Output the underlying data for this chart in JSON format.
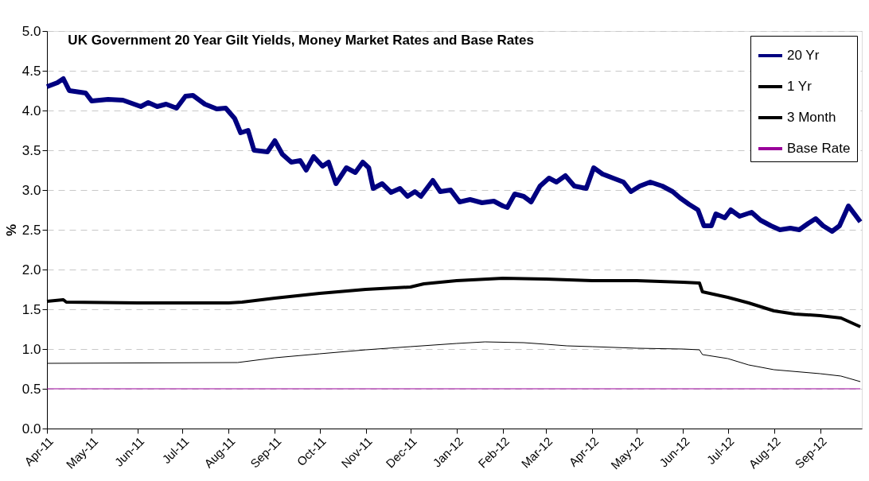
{
  "chart_data": {
    "type": "line",
    "title": "UK Government 20 Year Gilt Yields, Money Market Rates and Base Rates",
    "ylabel": "%",
    "xlim": [
      "2011-04-01",
      "2012-09-29"
    ],
    "ylim": [
      0,
      5
    ],
    "yticks": [
      {
        "value": 0,
        "label": "0.0"
      },
      {
        "value": 0.5,
        "label": "0.5"
      },
      {
        "value": 1,
        "label": "1.0"
      },
      {
        "value": 1.5,
        "label": "1.5"
      },
      {
        "value": 2,
        "label": "2.0"
      },
      {
        "value": 2.5,
        "label": "2.5"
      },
      {
        "value": 3,
        "label": "3.0"
      },
      {
        "value": 3.5,
        "label": "3.5"
      },
      {
        "value": 4,
        "label": "4.0"
      },
      {
        "value": 4.5,
        "label": "4.5"
      },
      {
        "value": 5,
        "label": "5.0"
      }
    ],
    "xticks": [
      {
        "value": "2011-04",
        "label": "Apr-11"
      },
      {
        "value": "2011-05",
        "label": "May-11"
      },
      {
        "value": "2011-06",
        "label": "Jun-11"
      },
      {
        "value": "2011-07",
        "label": "Jul-11"
      },
      {
        "value": "2011-08",
        "label": "Aug-11"
      },
      {
        "value": "2011-09",
        "label": "Sep-11"
      },
      {
        "value": "2011-10",
        "label": "Oct-11"
      },
      {
        "value": "2011-11",
        "label": "Nov-11"
      },
      {
        "value": "2011-12",
        "label": "Dec-11"
      },
      {
        "value": "2012-01",
        "label": "Jan-12"
      },
      {
        "value": "2012-02",
        "label": "Feb-12"
      },
      {
        "value": "2012-03",
        "label": "Mar-12"
      },
      {
        "value": "2012-04",
        "label": "Apr-12"
      },
      {
        "value": "2012-05",
        "label": "May-12"
      },
      {
        "value": "2012-06",
        "label": "Jun-12"
      },
      {
        "value": "2012-07",
        "label": "Jul-12"
      },
      {
        "value": "2012-08",
        "label": "Aug-12"
      },
      {
        "value": "2012-09",
        "label": "Sep-12"
      }
    ],
    "grid": "y",
    "legend": "top right",
    "marker": "none",
    "series": [
      {
        "name": "20 Yr",
        "color": "#000080",
        "x": [
          "2011-04-01",
          "2011-04-08",
          "2011-04-12",
          "2011-04-16",
          "2011-04-27",
          "2011-05-01",
          "2011-05-12",
          "2011-05-22",
          "2011-06-03",
          "2011-06-08",
          "2011-06-14",
          "2011-06-20",
          "2011-06-27",
          "2011-07-03",
          "2011-07-08",
          "2011-07-16",
          "2011-07-24",
          "2011-07-30",
          "2011-08-05",
          "2011-08-09",
          "2011-08-14",
          "2011-08-18",
          "2011-08-27",
          "2011-09-01",
          "2011-09-06",
          "2011-09-12",
          "2011-09-18",
          "2011-09-22",
          "2011-09-27",
          "2011-10-03",
          "2011-10-07",
          "2011-10-12",
          "2011-10-19",
          "2011-10-25",
          "2011-10-30",
          "2011-11-03",
          "2011-11-06",
          "2011-11-12",
          "2011-11-18",
          "2011-11-24",
          "2011-11-29",
          "2011-12-04",
          "2011-12-08",
          "2011-12-16",
          "2011-12-21",
          "2011-12-28",
          "2012-01-03",
          "2012-01-10",
          "2012-01-18",
          "2012-01-26",
          "2012-02-01",
          "2012-02-04",
          "2012-02-09",
          "2012-02-15",
          "2012-02-20",
          "2012-02-26",
          "2012-03-03",
          "2012-03-08",
          "2012-03-14",
          "2012-03-20",
          "2012-03-28",
          "2012-04-02",
          "2012-04-08",
          "2012-04-15",
          "2012-04-22",
          "2012-04-27",
          "2012-05-03",
          "2012-05-10",
          "2012-05-18",
          "2012-05-25",
          "2012-05-30",
          "2012-06-05",
          "2012-06-11",
          "2012-06-15",
          "2012-06-20",
          "2012-06-23",
          "2012-06-29",
          "2012-07-03",
          "2012-07-09",
          "2012-07-17",
          "2012-07-23",
          "2012-07-30",
          "2012-08-05",
          "2012-08-12",
          "2012-08-18",
          "2012-08-24",
          "2012-08-29",
          "2012-09-03",
          "2012-09-09",
          "2012-09-14",
          "2012-09-20",
          "2012-09-24",
          "2012-09-28"
        ],
        "values": [
          4.3,
          4.35,
          4.4,
          4.25,
          4.22,
          4.12,
          4.14,
          4.13,
          4.05,
          4.1,
          4.05,
          4.08,
          4.03,
          4.18,
          4.19,
          4.08,
          4.02,
          4.03,
          3.9,
          3.72,
          3.75,
          3.5,
          3.48,
          3.62,
          3.45,
          3.35,
          3.37,
          3.25,
          3.42,
          3.3,
          3.35,
          3.08,
          3.28,
          3.22,
          3.35,
          3.28,
          3.02,
          3.08,
          2.97,
          3.02,
          2.92,
          2.98,
          2.92,
          3.12,
          2.98,
          3.0,
          2.85,
          2.88,
          2.84,
          2.86,
          2.8,
          2.78,
          2.95,
          2.92,
          2.85,
          3.05,
          3.15,
          3.1,
          3.18,
          3.05,
          3.02,
          3.28,
          3.2,
          3.15,
          3.1,
          2.98,
          3.05,
          3.1,
          3.05,
          2.98,
          2.9,
          2.82,
          2.75,
          2.55,
          2.55,
          2.7,
          2.65,
          2.75,
          2.67,
          2.72,
          2.62,
          2.55,
          2.5,
          2.52,
          2.5,
          2.58,
          2.64,
          2.55,
          2.48,
          2.55,
          2.8,
          2.7,
          2.6
        ]
      },
      {
        "name": "1 Yr",
        "color": "#000000",
        "x": [
          "2011-04-01",
          "2011-04-12",
          "2011-04-14",
          "2011-06-01",
          "2011-08-01",
          "2011-08-10",
          "2011-09-01",
          "2011-10-01",
          "2011-11-01",
          "2011-12-01",
          "2011-12-10",
          "2012-01-01",
          "2012-02-01",
          "2012-03-01",
          "2012-04-01",
          "2012-05-01",
          "2012-06-01",
          "2012-06-12",
          "2012-06-14",
          "2012-07-01",
          "2012-07-15",
          "2012-08-01",
          "2012-08-15",
          "2012-09-01",
          "2012-09-15",
          "2012-09-28"
        ],
        "values": [
          1.6,
          1.62,
          1.59,
          1.58,
          1.58,
          1.59,
          1.64,
          1.7,
          1.75,
          1.78,
          1.82,
          1.86,
          1.89,
          1.88,
          1.86,
          1.86,
          1.84,
          1.83,
          1.72,
          1.65,
          1.58,
          1.48,
          1.44,
          1.42,
          1.39,
          1.28
        ]
      },
      {
        "name": "3 Month",
        "color": "#000000",
        "x": [
          "2011-04-01",
          "2011-08-07",
          "2011-09-01",
          "2011-10-01",
          "2011-11-01",
          "2011-12-01",
          "2012-01-01",
          "2012-01-20",
          "2012-02-15",
          "2012-03-01",
          "2012-03-15",
          "2012-04-01",
          "2012-05-01",
          "2012-06-01",
          "2012-06-12",
          "2012-06-14",
          "2012-07-01",
          "2012-07-15",
          "2012-08-01",
          "2012-09-01",
          "2012-09-15",
          "2012-09-28"
        ],
        "values": [
          0.82,
          0.83,
          0.89,
          0.94,
          0.99,
          1.03,
          1.07,
          1.09,
          1.08,
          1.06,
          1.04,
          1.03,
          1.01,
          1.0,
          0.99,
          0.93,
          0.88,
          0.8,
          0.74,
          0.69,
          0.66,
          0.59
        ]
      },
      {
        "name": "Base Rate",
        "color": "#990099",
        "x": [
          "2011-04-01",
          "2012-09-28"
        ],
        "values": [
          0.5,
          0.5
        ]
      }
    ]
  }
}
